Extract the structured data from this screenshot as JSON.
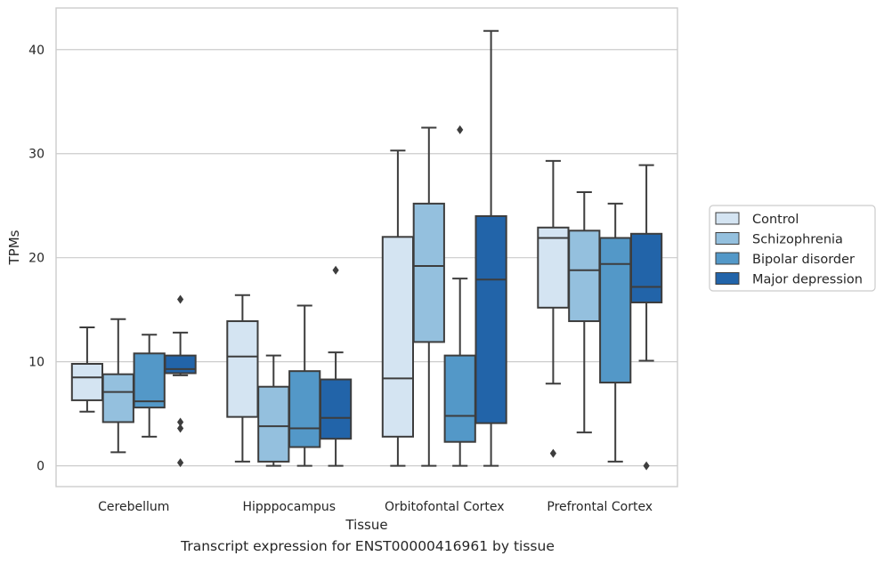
{
  "caption": "Transcript expression for ENST00000416961 by tissue",
  "chart_data": {
    "type": "box",
    "title": "",
    "xlabel": "Tissue",
    "ylabel": "TPMs",
    "ylim": [
      -2,
      44
    ],
    "yticks": [
      0,
      10,
      20,
      30,
      40
    ],
    "grid": "horizontal",
    "legend_position": "right",
    "categories": [
      "Cerebellum",
      "Hipppocampus",
      "Orbitofontal Cortex",
      "Prefrontal Cortex"
    ],
    "series": [
      {
        "name": "Control",
        "color": "#d4e4f2",
        "boxes": [
          {
            "min": 5.2,
            "q1": 6.3,
            "median": 8.5,
            "q3": 9.8,
            "max": 13.3,
            "outliers": []
          },
          {
            "min": 0.4,
            "q1": 4.7,
            "median": 10.5,
            "q3": 13.9,
            "max": 16.4,
            "outliers": []
          },
          {
            "min": 0.0,
            "q1": 2.8,
            "median": 8.4,
            "q3": 22.0,
            "max": 30.3,
            "outliers": []
          },
          {
            "min": 7.9,
            "q1": 15.2,
            "median": 21.9,
            "q3": 22.9,
            "max": 29.3,
            "outliers": [
              1.2
            ]
          }
        ]
      },
      {
        "name": "Schizophrenia",
        "color": "#94c0de",
        "boxes": [
          {
            "min": 1.3,
            "q1": 4.2,
            "median": 7.1,
            "q3": 8.8,
            "max": 14.1,
            "outliers": []
          },
          {
            "min": 0.0,
            "q1": 0.4,
            "median": 3.8,
            "q3": 7.6,
            "max": 10.6,
            "outliers": []
          },
          {
            "min": 0.0,
            "q1": 11.9,
            "median": 19.2,
            "q3": 25.2,
            "max": 32.5,
            "outliers": []
          },
          {
            "min": 3.2,
            "q1": 13.9,
            "median": 18.8,
            "q3": 22.6,
            "max": 26.3,
            "outliers": []
          }
        ]
      },
      {
        "name": "Bipolar disorder",
        "color": "#5398c8",
        "boxes": [
          {
            "min": 2.8,
            "q1": 5.6,
            "median": 6.2,
            "q3": 10.8,
            "max": 12.6,
            "outliers": []
          },
          {
            "min": 0.0,
            "q1": 1.8,
            "median": 3.6,
            "q3": 9.1,
            "max": 15.4,
            "outliers": []
          },
          {
            "min": 0.0,
            "q1": 2.3,
            "median": 4.8,
            "q3": 10.6,
            "max": 18.0,
            "outliers": [
              32.3
            ]
          },
          {
            "min": 0.4,
            "q1": 8.0,
            "median": 19.4,
            "q3": 21.9,
            "max": 25.2,
            "outliers": []
          }
        ]
      },
      {
        "name": "Major depression",
        "color": "#2264a9",
        "boxes": [
          {
            "min": 8.7,
            "q1": 8.9,
            "median": 9.3,
            "q3": 10.6,
            "max": 12.8,
            "outliers": [
              16.0,
              4.2,
              3.6,
              0.3
            ]
          },
          {
            "min": 0.0,
            "q1": 2.6,
            "median": 4.6,
            "q3": 8.3,
            "max": 10.9,
            "outliers": [
              18.8
            ]
          },
          {
            "min": 0.0,
            "q1": 4.1,
            "median": 17.9,
            "q3": 24.0,
            "max": 41.8,
            "outliers": []
          },
          {
            "min": 10.1,
            "q1": 15.7,
            "median": 17.2,
            "q3": 22.3,
            "max": 28.9,
            "outliers": [
              0.0
            ]
          }
        ]
      }
    ]
  }
}
